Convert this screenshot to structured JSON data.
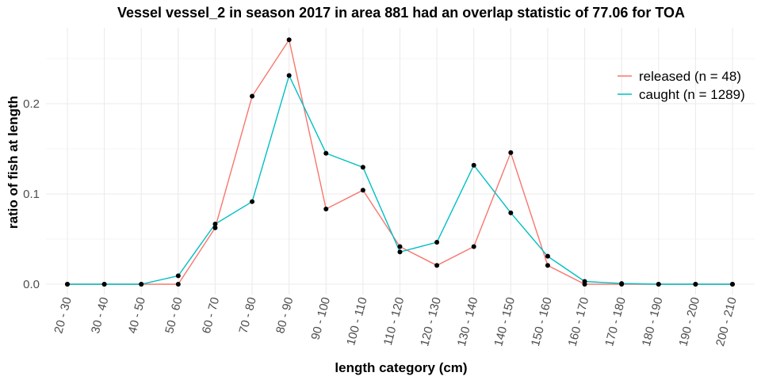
{
  "chart_data": {
    "type": "line",
    "title": "Vessel vessel_2 in season 2017 in area 881 had an overlap statistic of 77.06 for TOA",
    "xlabel": "length category (cm)",
    "ylabel": "ratio of fish at length",
    "categories": [
      "20 - 30",
      "30 - 40",
      "40 - 50",
      "50 - 60",
      "60 - 70",
      "70 - 80",
      "80 - 90",
      "90 - 100",
      "100 - 110",
      "110 - 120",
      "120 - 130",
      "130 - 140",
      "140 - 150",
      "150 - 160",
      "160 - 170",
      "170 - 180",
      "180 - 190",
      "190 - 200",
      "200 - 210"
    ],
    "ylim": [
      0,
      0.27
    ],
    "yticks": [
      0.0,
      0.1,
      0.2
    ],
    "ytick_labels": [
      "0.0",
      "0.1",
      "0.2"
    ],
    "grid": true,
    "legend_position": "top-right",
    "series": [
      {
        "name": "released (n = 48)",
        "color": "#F8766D",
        "values": [
          0,
          0,
          0,
          0,
          0.0625,
          0.2083,
          0.2708,
          0.0833,
          0.1042,
          0.0417,
          0.0208,
          0.0417,
          0.1458,
          0.0208,
          0,
          0,
          0,
          0,
          0
        ]
      },
      {
        "name": "caught (n = 1289)",
        "color": "#00BFC4",
        "values": [
          0,
          0,
          0,
          0.0093,
          0.0667,
          0.0915,
          0.2312,
          0.1451,
          0.1296,
          0.0357,
          0.0465,
          0.1318,
          0.0791,
          0.031,
          0.0031,
          0.0008,
          0,
          0,
          0
        ]
      }
    ],
    "point_color": "#000000"
  }
}
